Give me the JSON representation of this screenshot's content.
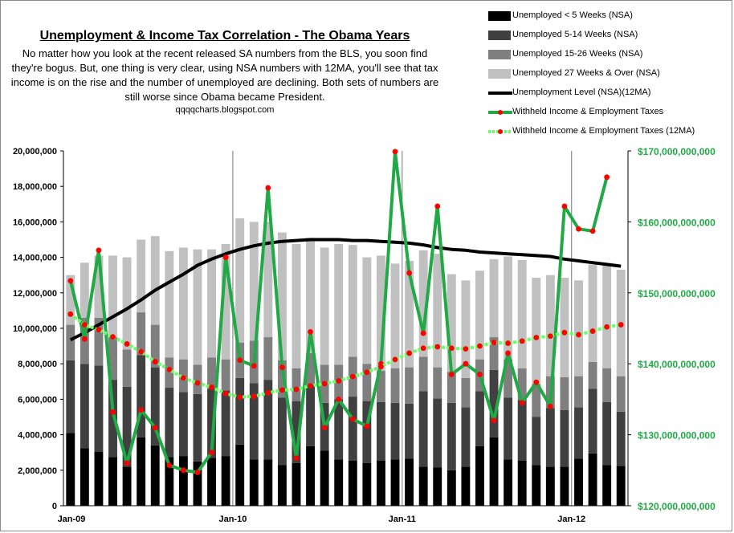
{
  "chart_data": {
    "type": "bar",
    "title": "Unemployment & Income Tax Correlation - The Obama Years",
    "subtitle": "No matter how you look at the recent released SA numbers from the BLS, you soon find they're bogus.  But, one thing is very clear, using NSA numbers with 12MA, you'll see that tax income is on the rise and the number of unemployed are declining. Both sets of numbers are still worse since Obama became President.",
    "source": "qqqqcharts.blogspot.com",
    "x_labels": [
      "Jan-09",
      "Jan-10",
      "Jan-11",
      "Jan-12"
    ],
    "x_label_index": [
      0,
      12,
      24,
      36
    ],
    "left_axis": {
      "ylim": [
        0,
        20000000
      ],
      "ticks": [
        "0",
        "2,000,000",
        "4,000,000",
        "6,000,000",
        "8,000,000",
        "10,000,000",
        "12,000,000",
        "14,000,000",
        "16,000,000",
        "18,000,000",
        "20,000,000"
      ]
    },
    "right_axis": {
      "ylim": [
        120000000000,
        170000000000
      ],
      "ticks": [
        "$120,000,000,000",
        "$130,000,000,000",
        "$140,000,000,000",
        "$150,000,000,000",
        "$160,000,000,000",
        "$170,000,000,000"
      ]
    },
    "grid": "vertical",
    "legend_position": "top-right",
    "stacked_series": [
      {
        "name": "Unemployed < 5 Weeks (NSA)",
        "color": "#000000",
        "values": [
          4100000,
          3250000,
          3050000,
          2750000,
          2200000,
          3850000,
          3400000,
          2750000,
          2800000,
          2500000,
          2700000,
          2800000,
          3450000,
          2600000,
          2600000,
          2300000,
          2400000,
          3350000,
          3100000,
          2600000,
          2550000,
          2400000,
          2550000,
          2600000,
          2650000,
          2200000,
          2150000,
          2000000,
          2200000,
          3350000,
          3850000,
          2600000,
          2550000,
          2300000,
          2200000,
          2200000,
          2650000,
          2950000,
          2300000,
          2250000
        ]
      },
      {
        "name": "Unemployed 5-14 Weeks (NSA)",
        "color": "#404040",
        "values": [
          4100000,
          4750000,
          4850000,
          4350000,
          4500000,
          4650000,
          4400000,
          3900000,
          3600000,
          3800000,
          3900000,
          3700000,
          3750000,
          4300000,
          4500000,
          3800000,
          3500000,
          3450000,
          2700000,
          3400000,
          3600000,
          3500000,
          3300000,
          3200000,
          3100000,
          4250000,
          3900000,
          3800000,
          3350000,
          3100000,
          3800000,
          3500000,
          3400000,
          2700000,
          3300000,
          3200000,
          2900000,
          3650000,
          3550000,
          3050000
        ]
      },
      {
        "name": "Unemployed 15-26 Weeks (NSA)",
        "color": "#7f7f7f",
        "values": [
          2000000,
          2600000,
          2700000,
          2400000,
          2100000,
          2400000,
          2400000,
          1700000,
          1850000,
          1650000,
          1750000,
          1750000,
          2000000,
          2400000,
          2400000,
          2100000,
          1850000,
          1800000,
          2150000,
          1950000,
          2250000,
          2100000,
          1750000,
          1950000,
          2050000,
          1950000,
          1750000,
          1750000,
          1650000,
          1800000,
          1850000,
          2150000,
          1800000,
          1850000,
          1800000,
          1850000,
          1750000,
          1500000,
          1900000,
          2000000
        ]
      },
      {
        "name": "Unemployed 27 Weeks & Over (NSA)",
        "color": "#c0c0c0",
        "values": [
          2800000,
          3100000,
          3500000,
          4600000,
          5200000,
          4100000,
          5000000,
          6000000,
          6300000,
          6500000,
          6100000,
          6500000,
          7000000,
          6700000,
          6500000,
          7200000,
          7000000,
          6500000,
          6600000,
          6800000,
          6300000,
          6000000,
          6500000,
          5900000,
          6000000,
          6000000,
          6400000,
          5500000,
          5500000,
          5000000,
          4400000,
          5800000,
          6100000,
          6000000,
          5700000,
          5600000,
          5400000,
          5500000,
          5800000,
          6000000
        ]
      }
    ],
    "line_series": [
      {
        "name": "Unemployment Level (NSA)(12MA)",
        "axis": "left",
        "color": "#000000",
        "x_start": 0,
        "values": [
          9350000,
          9750000,
          10200000,
          10650000,
          11100000,
          11600000,
          12150000,
          12600000,
          13050000,
          13550000,
          13900000,
          14200000,
          14450000,
          14650000,
          14800000,
          14900000,
          14950000,
          15000000,
          15000000,
          15000000,
          14950000,
          14950000,
          14900000,
          14850000,
          14800000,
          14700000,
          14550000,
          14450000,
          14400000,
          14300000,
          14250000,
          14200000,
          14150000,
          14100000,
          14050000,
          13900000,
          13800000,
          13700000,
          13600000,
          13500000
        ]
      },
      {
        "name": "Withheld Income & Employment Taxes",
        "axis": "right",
        "color": "#1faa45",
        "x_start": 0,
        "values": [
          151700000000,
          143500000000,
          156000000000,
          133200000000,
          126000000000,
          133500000000,
          131000000000,
          125700000000,
          125000000000,
          124700000000,
          127500000000,
          155000000000,
          140500000000,
          139700000000,
          164800000000,
          139500000000,
          126700000000,
          144500000000,
          131000000000,
          135000000000,
          132200000000,
          131200000000,
          140000000000,
          169900000000,
          152800000000,
          144300000000,
          162200000000,
          138500000000,
          140000000000,
          138500000000,
          132000000000,
          141500000000,
          134500000000,
          137400000000,
          134000000000,
          162200000000,
          159000000000,
          158700000000,
          166300000000
        ]
      },
      {
        "name": "Withheld Income & Employment Taxes (12MA)",
        "axis": "right",
        "color": "#66ff66",
        "x_start": 0,
        "values": [
          147000000000,
          145500000000,
          144800000000,
          143800000000,
          142800000000,
          141700000000,
          140300000000,
          139200000000,
          138000000000,
          137300000000,
          136700000000,
          135800000000,
          135300000000,
          135400000000,
          135900000000,
          136300000000,
          136400000000,
          136900000000,
          137200000000,
          137600000000,
          138200000000,
          138800000000,
          139600000000,
          140600000000,
          141500000000,
          142200000000,
          142400000000,
          142200000000,
          142100000000,
          142500000000,
          143000000000,
          142900000000,
          143200000000,
          143700000000,
          143900000000,
          144400000000,
          144100000000,
          144600000000,
          145200000000,
          145500000000
        ]
      }
    ]
  }
}
